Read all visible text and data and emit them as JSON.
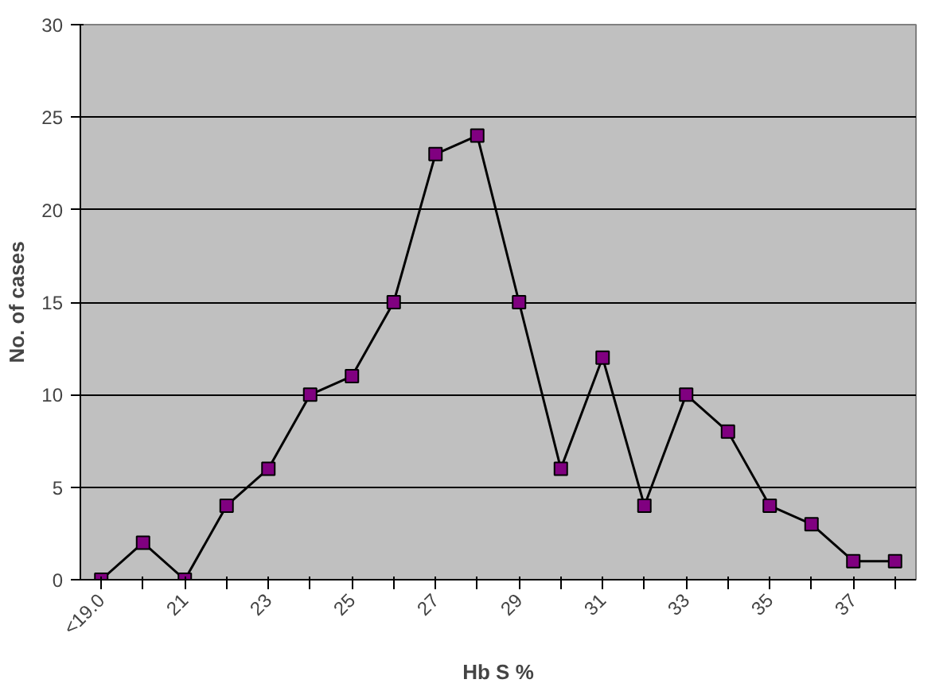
{
  "chart_data": {
    "type": "line",
    "xlabel": "Hb S %",
    "ylabel": "No. of cases",
    "categories": [
      "<19.0",
      null,
      "21",
      null,
      "23",
      null,
      "25",
      null,
      "27",
      null,
      "29",
      null,
      "31",
      null,
      "33",
      null,
      "35",
      null,
      "37",
      null
    ],
    "series": [
      {
        "color": "#000000",
        "values": [
          0,
          2,
          0,
          4,
          6,
          10,
          11,
          15,
          23,
          24,
          15,
          6,
          12,
          4,
          10,
          8,
          4,
          3,
          1,
          1
        ]
      }
    ],
    "marker": "square",
    "line_style": "solid",
    "ylim": [
      0,
      30
    ],
    "yticks": [
      0,
      5,
      10,
      15,
      20,
      25,
      30
    ],
    "grid": "y"
  }
}
